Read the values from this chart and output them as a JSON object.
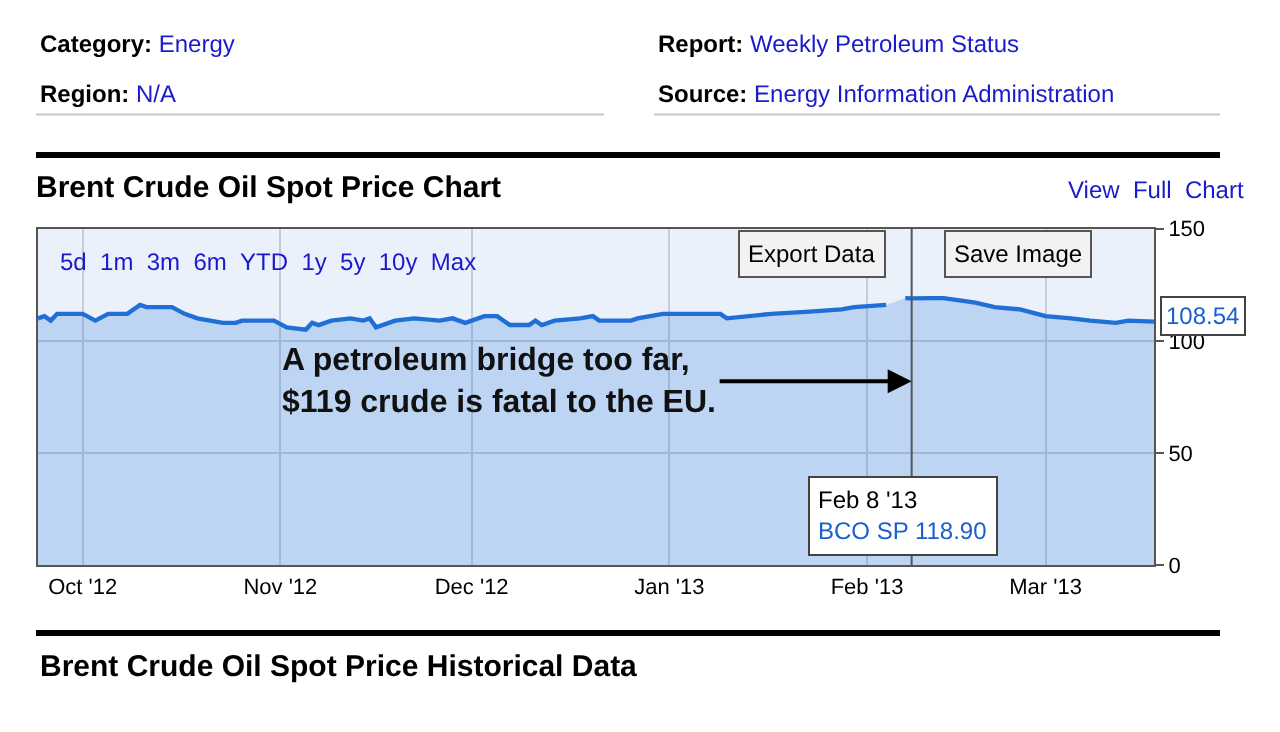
{
  "chart_data": {
    "type": "area",
    "title": "Brent Crude Oil Spot Price Chart",
    "annotations": [
      "Category: Energy",
      "Region: N/A",
      "Report: Weekly Petroleum Status",
      "Source: Energy Information Administration",
      "View Full Chart",
      "5d 1m 3m 6m YTD 1y 5y 10y Max",
      "Export Data",
      "Save Image",
      {
        "text": "A petroleum bridge too far,\n$119 crude is fatal to the EU.",
        "x": "2013-02-08",
        "y": 82
      },
      "Feb 8 '13\nBCO SP 118.90",
      {
        "text": "108.54",
        "x": "2013-03-18",
        "y": 108.54
      },
      "Brent Crude Oil Spot Price Historical Data"
    ],
    "x": [
      "2012-09-24",
      "2012-09-25",
      "2012-09-26",
      "2012-09-27",
      "2012-10-01",
      "2012-10-03",
      "2012-10-05",
      "2012-10-08",
      "2012-10-10",
      "2012-10-11",
      "2012-10-15",
      "2012-10-17",
      "2012-10-19",
      "2012-10-23",
      "2012-10-25",
      "2012-10-26",
      "2012-10-31",
      "2012-11-02",
      "2012-11-05",
      "2012-11-06",
      "2012-11-07",
      "2012-11-09",
      "2012-11-12",
      "2012-11-14",
      "2012-11-15",
      "2012-11-16",
      "2012-11-19",
      "2012-11-22",
      "2012-11-26",
      "2012-11-28",
      "2012-11-30",
      "2012-12-03",
      "2012-12-05",
      "2012-12-07",
      "2012-12-10",
      "2012-12-11",
      "2012-12-12",
      "2012-12-14",
      "2012-12-18",
      "2012-12-20",
      "2012-12-21",
      "2012-12-26",
      "2012-12-27",
      "2012-12-31",
      "2013-01-04",
      "2013-01-09",
      "2013-01-10",
      "2013-01-17",
      "2013-01-23",
      "2013-01-28",
      "2013-01-30",
      "2013-02-04",
      "2013-02-05",
      "2013-02-07",
      "2013-02-08",
      "2013-02-11",
      "2013-02-13",
      "2013-02-18",
      "2013-02-21",
      "2013-02-25",
      "2013-03-01",
      "2013-03-05",
      "2013-03-08",
      "2013-03-12",
      "2013-03-14",
      "2013-03-18"
    ],
    "series": [
      {
        "color": "#1f6fd6",
        "values": [
          110,
          111,
          109,
          112,
          112,
          109,
          112,
          112,
          116,
          115,
          115,
          112,
          110,
          108,
          108,
          109,
          109,
          106,
          105,
          108,
          107,
          109,
          110,
          109,
          110,
          106,
          109,
          110,
          109,
          110,
          108,
          111,
          111,
          107,
          107,
          109,
          107,
          109,
          110,
          111,
          109,
          109,
          110,
          112,
          112,
          112,
          110,
          112,
          113,
          114,
          115,
          116,
          null,
          119,
          118.9,
          119,
          119,
          117,
          115,
          114,
          111,
          110,
          109,
          108,
          109,
          108.54
        ]
      }
    ],
    "xlim": [
      "2012-09-24",
      "2013-03-18"
    ],
    "xticks": [
      {
        "value": "2012-10-01",
        "label": "Oct '12"
      },
      {
        "value": "2012-11-01",
        "label": "Nov '12"
      },
      {
        "value": "2012-12-01",
        "label": "Dec '12"
      },
      {
        "value": "2013-01-01",
        "label": "Jan '13"
      },
      {
        "value": "2013-02-01",
        "label": "Feb '13"
      },
      {
        "value": "2013-03-01",
        "label": "Mar '13"
      }
    ],
    "ylim": [
      0,
      150
    ],
    "yticks": [
      0,
      50,
      100,
      150
    ],
    "grid": true,
    "ref_lines": [
      {
        "axis": "x",
        "value": "2013-02-08",
        "color": "#555555"
      }
    ]
  }
}
